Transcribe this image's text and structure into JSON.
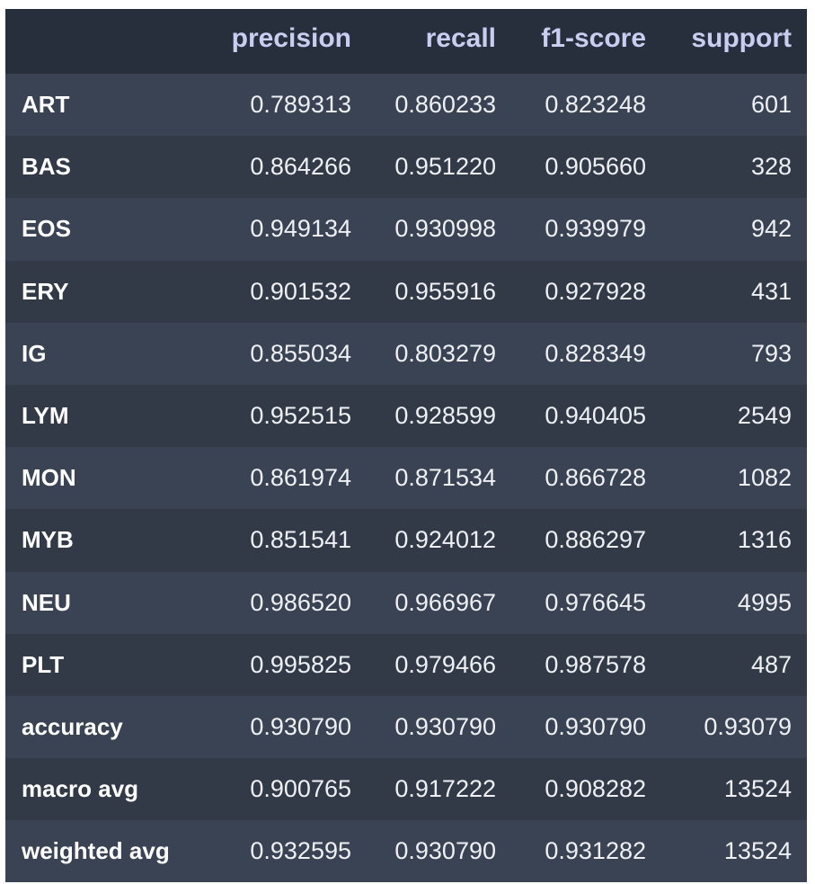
{
  "report": {
    "columns": [
      "precision",
      "recall",
      "f1-score",
      "support"
    ],
    "rows": [
      {
        "label": "ART",
        "precision": "0.789313",
        "recall": "0.860233",
        "f1": "0.823248",
        "support": "601"
      },
      {
        "label": "BAS",
        "precision": "0.864266",
        "recall": "0.951220",
        "f1": "0.905660",
        "support": "328"
      },
      {
        "label": "EOS",
        "precision": "0.949134",
        "recall": "0.930998",
        "f1": "0.939979",
        "support": "942"
      },
      {
        "label": "ERY",
        "precision": "0.901532",
        "recall": "0.955916",
        "f1": "0.927928",
        "support": "431"
      },
      {
        "label": "IG",
        "precision": "0.855034",
        "recall": "0.803279",
        "f1": "0.828349",
        "support": "793"
      },
      {
        "label": "LYM",
        "precision": "0.952515",
        "recall": "0.928599",
        "f1": "0.940405",
        "support": "2549"
      },
      {
        "label": "MON",
        "precision": "0.861974",
        "recall": "0.871534",
        "f1": "0.866728",
        "support": "1082"
      },
      {
        "label": "MYB",
        "precision": "0.851541",
        "recall": "0.924012",
        "f1": "0.886297",
        "support": "1316"
      },
      {
        "label": "NEU",
        "precision": "0.986520",
        "recall": "0.966967",
        "f1": "0.976645",
        "support": "4995"
      },
      {
        "label": "PLT",
        "precision": "0.995825",
        "recall": "0.979466",
        "f1": "0.987578",
        "support": "487"
      },
      {
        "label": "accuracy",
        "precision": "0.930790",
        "recall": "0.930790",
        "f1": "0.930790",
        "support": "0.93079"
      },
      {
        "label": "macro avg",
        "precision": "0.900765",
        "recall": "0.917222",
        "f1": "0.908282",
        "support": "13524"
      },
      {
        "label": "weighted avg",
        "precision": "0.932595",
        "recall": "0.930790",
        "f1": "0.931282",
        "support": "13524"
      }
    ]
  },
  "colors": {
    "header_bg": "#272f3c",
    "row_bg_odd": "#3a4353",
    "row_bg_even": "#323a48",
    "header_text": "#c9cdf0",
    "cell_text": "#eef0f4"
  }
}
